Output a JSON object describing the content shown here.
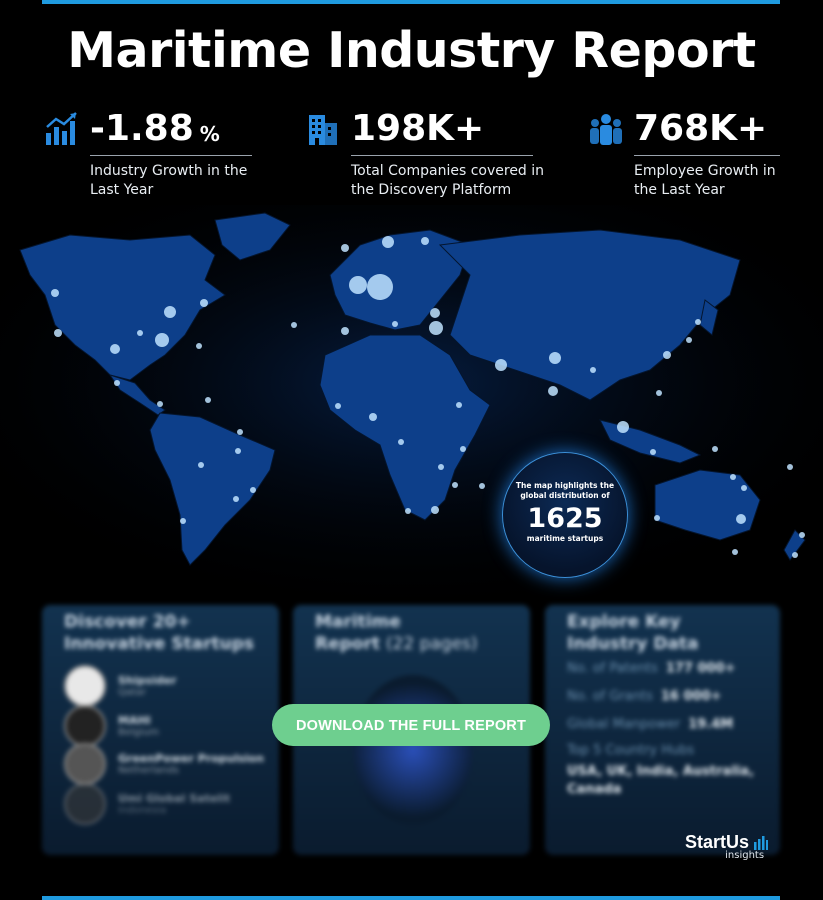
{
  "header": {
    "title": "Maritime Industry Report"
  },
  "stats": [
    {
      "value": "-1.88",
      "unit": "%",
      "label": "Industry Growth in the Last Year",
      "icon": "growth-chart-icon"
    },
    {
      "value": "198K+",
      "unit": "",
      "label": "Total Companies covered in the Discovery Platform",
      "icon": "building-icon"
    },
    {
      "value": "768K+",
      "unit": "",
      "label": "Employee Growth in the Last Year",
      "icon": "people-icon"
    }
  ],
  "map_badge": {
    "line1": "The map highlights the global distribution of",
    "count": "1625",
    "line2": "maritime startups"
  },
  "cards": {
    "startups": {
      "title": "Discover 20+ Innovative Startups",
      "items": [
        {
          "name": "Shipsider",
          "country": "Qatar"
        },
        {
          "name": "MAHI",
          "country": "Belgium"
        },
        {
          "name": "GreenPower Propulsion",
          "country": "Netherlands"
        },
        {
          "name": "Umi Global Satelit",
          "country": "Indonesia"
        }
      ]
    },
    "report": {
      "title": "Maritime",
      "title2": "Report",
      "pages": "(22 pages)"
    },
    "data": {
      "title": "Explore Key Industry Data",
      "rows": [
        {
          "label": "No. of Patents",
          "value": "177 000+"
        },
        {
          "label": "No. of Grants",
          "value": "16 000+"
        },
        {
          "label": "Global Manpower",
          "value": "19.4M"
        }
      ],
      "hubs_label": "Top 5 Country Hubs",
      "hubs_value": "USA, UK, India, Australia, Canada"
    }
  },
  "cta": {
    "label": "DOWNLOAD THE FULL REPORT"
  },
  "brand": {
    "name": "StartUs",
    "sub": "insights"
  },
  "colors": {
    "accent": "#1f9be0",
    "cta": "#6ecf8f",
    "map": "#0d3f8a",
    "background": "#000000"
  }
}
